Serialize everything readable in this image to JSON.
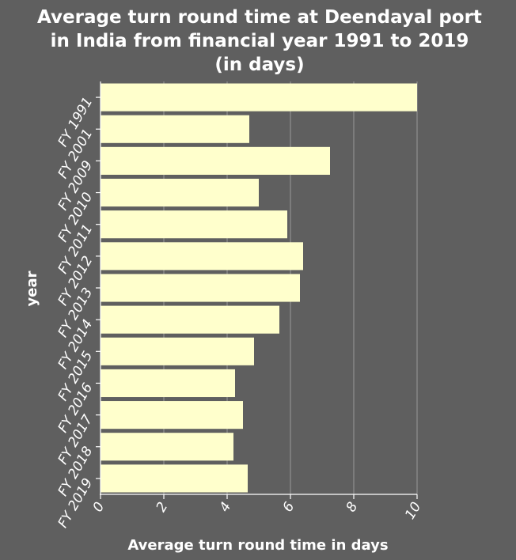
{
  "chart_data": {
    "type": "bar",
    "orientation": "horizontal",
    "title_lines": [
      "Average turn round time at Deendayal port",
      "in India from financial year 1991 to 2019",
      "(in days)"
    ],
    "xlabel": "Average turn round time in days",
    "ylabel": "year",
    "categories": [
      "FY 1991",
      "FY 2001",
      "FY 2009",
      "FY 2010",
      "FY 2011",
      "FY 2012",
      "FY 2013",
      "FY 2014",
      "FY 2015",
      "FY 2016",
      "FY 2017",
      "FY 2018",
      "FY 2019"
    ],
    "values": [
      10,
      4.7,
      7.25,
      5.0,
      5.9,
      6.4,
      6.3,
      5.65,
      4.85,
      4.25,
      4.5,
      4.2,
      4.65
    ],
    "xlim": [
      0,
      10
    ],
    "xticks": [
      0,
      2,
      4,
      6,
      8,
      10
    ],
    "grid": true,
    "bar_color": "#ffffcc",
    "background_color": "#5f5f5f",
    "grid_color": "#9a9a9a"
  }
}
